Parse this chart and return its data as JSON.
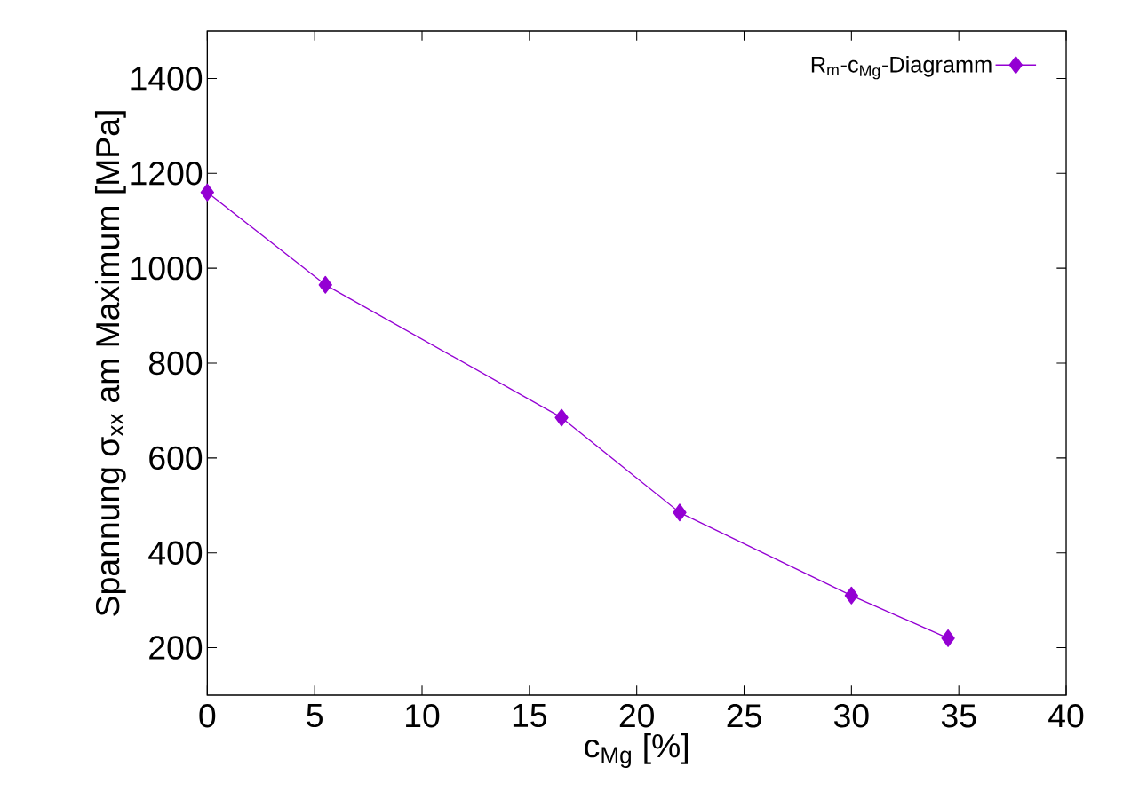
{
  "chart_data": {
    "type": "line",
    "xlabel": "c$_{Mg}$ [%]",
    "ylabel": "Spannung σ$_{xx}$ am Maximum [MPa]",
    "xlim": [
      0,
      40
    ],
    "ylim": [
      100,
      1500
    ],
    "xticks": [
      0,
      5,
      10,
      15,
      20,
      25,
      30,
      35,
      40
    ],
    "yticks": [
      200,
      400,
      600,
      800,
      1000,
      1200,
      1400
    ],
    "x": [
      0,
      5.5,
      16.5,
      22,
      30,
      34.5
    ],
    "series": [
      {
        "name": "R$_{m}$-c$_{Mg}$-Diagramm",
        "color": "#9400d3",
        "values": [
          1160,
          965,
          685,
          485,
          310,
          220
        ]
      }
    ],
    "marker": "diamond",
    "line_style": "solid",
    "legend": "top right",
    "grid": false
  }
}
